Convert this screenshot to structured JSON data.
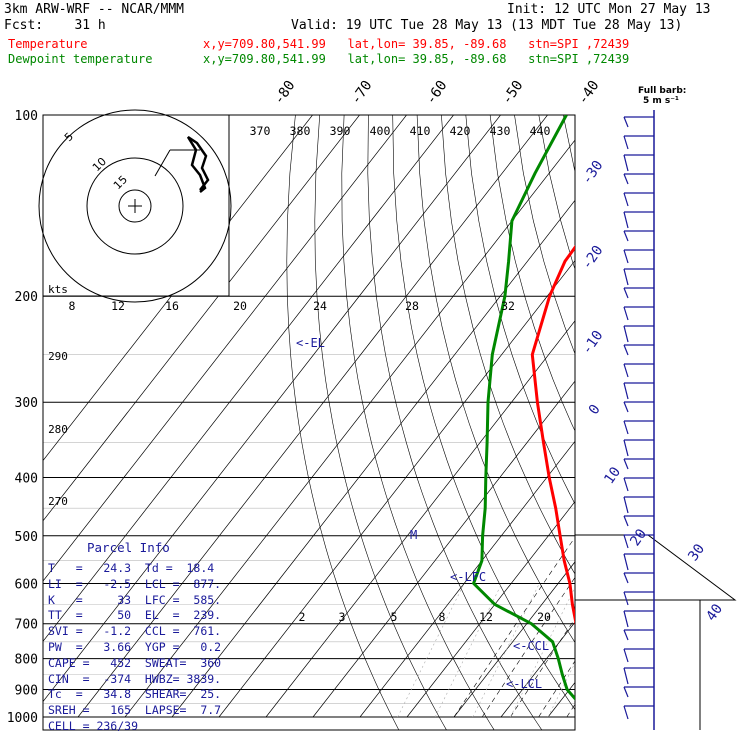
{
  "header": {
    "model": "3km ARW-WRF -- NCAR/MMM",
    "init": "Init: 12 UTC Mon 27 May 13",
    "fcst": "Fcst:    31 h",
    "valid": "Valid: 19 UTC Tue 28 May 13 (13 MDT Tue 28 May 13)",
    "temp_line": {
      "name": "Temperature",
      "loc": "x,y=709.80,541.99   lat,lon= 39.85, -89.68   stn=SPI ,72439"
    },
    "dew_line": {
      "name": "Dewpoint temperature",
      "loc": "x,y=709.80,541.99   lat,lon= 39.85, -89.68   stn=SPI ,72439"
    }
  },
  "colors": {
    "temperature": "#ff0000",
    "dewpoint": "#008800",
    "labels": "#1a1a9a",
    "barbs": "#1a1a9a"
  },
  "barb_key": {
    "line1": "Full barb:",
    "line2": "5 m s⁻¹"
  },
  "hodograph": {
    "units": "kts",
    "ring_labels": [
      "5",
      "10",
      "15"
    ]
  },
  "parcel_info": {
    "title": "Parcel Info",
    "rows": [
      "T   =   24.3  Td =  18.4",
      "LI  =   -2.5  LCL =  877.",
      "K   =     33  LFC =  585.",
      "TT  =     50  EL  =  239.",
      "SVI =   -1.2  CCL =  761.",
      "PW  =   3.66  YGP =   0.2",
      "CAPE =   452  SWEAT=  360",
      "CIN  =  -374  HWBZ= 3839.",
      "Tc  =   34.8  SHEAR=  25.",
      "SREH =   165  LAPSE=  7.7",
      "CELL = 236/39"
    ]
  },
  "chart_data": {
    "type": "line",
    "chart": "skew-T log-P sounding",
    "ylabel": "",
    "pressure_ticks": [
      100,
      200,
      300,
      400,
      500,
      600,
      700,
      800,
      900,
      1000
    ],
    "isotherm_labels": [
      "-80",
      "-70",
      "-60",
      "-50",
      "-40",
      "-30",
      "-20",
      "-10",
      "0",
      "10",
      "20",
      "30",
      "40"
    ],
    "theta_labels": [
      "290",
      "280",
      "270"
    ],
    "theta_e_labels": [
      "370",
      "380",
      "390",
      "400",
      "410",
      "420",
      "430",
      "440"
    ],
    "mixing_ratio_labels": [
      "8",
      "12",
      "16",
      "20",
      "24",
      "28",
      "32"
    ],
    "mixing_ratio_labels_low": [
      "2",
      "3",
      "5",
      "8",
      "12",
      "20"
    ],
    "annotations": [
      "<-EL",
      "<-LFC",
      "<-CCL",
      "<-LCL",
      "M"
    ],
    "series": [
      {
        "name": "Temperature",
        "pressure": [
          1000,
          975,
          950,
          925,
          900,
          850,
          800,
          750,
          700,
          650,
          600,
          550,
          500,
          450,
          400,
          350,
          300,
          250,
          200,
          175,
          150,
          125,
          100
        ],
        "values": [
          24.3,
          20.5,
          18.5,
          17.0,
          15.5,
          12.0,
          8.5,
          4.5,
          0.5,
          -3.5,
          -7.5,
          -12.5,
          -17.5,
          -23.0,
          -29.5,
          -36.5,
          -44.5,
          -53.5,
          -59.5,
          -62.0,
          -62.5,
          -64.0,
          -67.0
        ]
      },
      {
        "name": "Dewpoint temperature",
        "pressure": [
          1000,
          975,
          950,
          925,
          900,
          850,
          800,
          750,
          700,
          650,
          600,
          550,
          500,
          450,
          400,
          350,
          300,
          250,
          200,
          175,
          150,
          125,
          100
        ],
        "values": [
          18.4,
          16.5,
          14.5,
          12.0,
          9.5,
          6.0,
          2.5,
          -1.5,
          -9.0,
          -20.0,
          -28.0,
          -30.0,
          -34.0,
          -38.0,
          -43.0,
          -48.5,
          -55.0,
          -62.0,
          -69.0,
          -74.0,
          -80.0,
          -83.0,
          -86.0
        ]
      }
    ],
    "wind_barbs_count": 32
  }
}
